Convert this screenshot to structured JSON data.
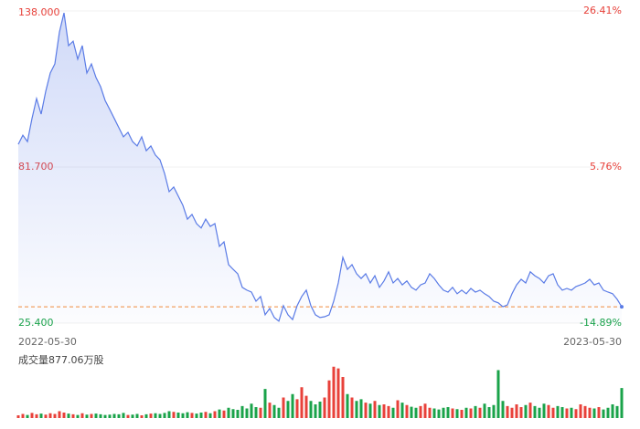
{
  "chart_data": {
    "type": "line",
    "x_labels": [
      "2022-05-30",
      "2023-05-30"
    ],
    "ylim": [
      25.4,
      138
    ],
    "yticks": [
      {
        "value": 138,
        "label": "138.000"
      },
      {
        "value": 81.7,
        "label": "81.700"
      },
      {
        "value": 25.4,
        "label": "25.400"
      }
    ],
    "y2lim": [
      -14.89,
      26.41
    ],
    "y2ticks": [
      {
        "value": 26.41,
        "label": "26.41%"
      },
      {
        "value": 5.76,
        "label": "5.76%"
      },
      {
        "value": -14.89,
        "label": "-14.89%"
      }
    ],
    "grid": true,
    "color": "#5a7be6",
    "up_color": "#e8413a",
    "down_color": "#1aa34a",
    "baseline": 31.3,
    "baseline_color": "#f08a3c",
    "series": [
      {
        "name": null,
        "values": [
          89.9,
          93.2,
          90.9,
          99.2,
          106.4,
          100.8,
          109.0,
          115.6,
          118.9,
          130.4,
          137.3,
          125.5,
          127.1,
          120.6,
          125.5,
          115.6,
          118.9,
          114.0,
          110.7,
          105.7,
          102.5,
          99.2,
          95.9,
          92.6,
          94.2,
          90.9,
          89.3,
          92.6,
          87.6,
          89.3,
          86.0,
          84.3,
          79.4,
          72.8,
          74.5,
          71.2,
          67.9,
          62.9,
          64.6,
          61.3,
          59.7,
          62.9,
          60.3,
          61.3,
          53.1,
          54.7,
          46.5,
          44.8,
          43.2,
          38.3,
          37.3,
          36.6,
          33.3,
          35.0,
          28.4,
          30.7,
          27.4,
          26.1,
          31.7,
          28.4,
          26.7,
          31.7,
          35.0,
          37.3,
          31.7,
          28.4,
          27.4,
          27.7,
          28.4,
          33.3,
          39.9,
          49.1,
          44.8,
          46.5,
          43.2,
          41.5,
          43.2,
          39.9,
          42.5,
          38.3,
          40.6,
          43.9,
          39.9,
          41.5,
          39.2,
          40.6,
          38.3,
          37.3,
          39.2,
          39.9,
          43.2,
          41.5,
          39.2,
          37.3,
          36.6,
          38.3,
          36.0,
          37.3,
          36.0,
          37.9,
          36.6,
          37.3,
          36.0,
          35.0,
          33.3,
          32.7,
          31.3,
          32.0,
          36.0,
          39.2,
          41.2,
          39.9,
          43.9,
          42.5,
          41.5,
          39.9,
          42.5,
          43.2,
          39.2,
          37.3,
          37.9,
          37.3,
          38.6,
          39.2,
          39.9,
          41.2,
          39.2,
          39.9,
          37.3,
          36.6,
          36.0,
          34.0,
          31.3
        ]
      }
    ],
    "volume": {
      "label": "成交量877.06万股",
      "ylim": [
        0,
        1600
      ],
      "values": [
        80,
        120,
        90,
        150,
        110,
        130,
        100,
        140,
        120,
        200,
        160,
        130,
        110,
        90,
        140,
        100,
        120,
        130,
        110,
        90,
        100,
        120,
        110,
        150,
        90,
        100,
        120,
        80,
        110,
        130,
        140,
        120,
        150,
        200,
        180,
        160,
        140,
        170,
        150,
        130,
        160,
        180,
        140,
        200,
        250,
        220,
        300,
        260,
        240,
        350,
        280,
        420,
        320,
        300,
        850,
        450,
        380,
        300,
        600,
        500,
        700,
        550,
        900,
        650,
        500,
        400,
        480,
        600,
        1100,
        1500,
        1450,
        1200,
        700,
        600,
        500,
        550,
        450,
        420,
        500,
        380,
        400,
        350,
        300,
        520,
        450,
        380,
        330,
        300,
        350,
        420,
        300,
        280,
        250,
        300,
        320,
        280,
        260,
        240,
        300,
        280,
        350,
        300,
        420,
        320,
        380,
        1400,
        500,
        350,
        300,
        400,
        320,
        380,
        450,
        350,
        300,
        420,
        380,
        300,
        350,
        320,
        280,
        300,
        260,
        400,
        350,
        300,
        280,
        320,
        250,
        300,
        400,
        350,
        877.06
      ]
    }
  }
}
